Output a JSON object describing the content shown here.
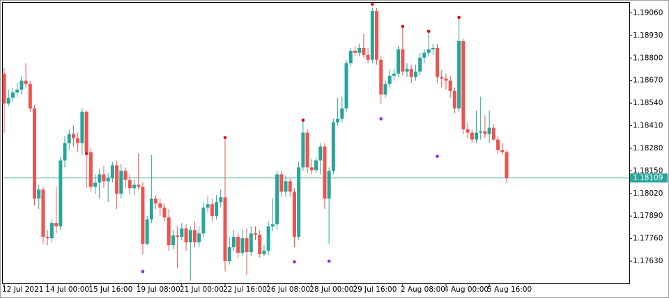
{
  "chart_data": {
    "type": "candlestick",
    "up_color": "#26a69a",
    "down_color": "#ef5350",
    "marker_high_color": "#dd1111",
    "marker_low_color": "#8a2be2",
    "price_line_color": "#26a69a",
    "grid": false,
    "ylim": [
      1.17502,
      1.19118
    ],
    "yticks": [
      {
        "value": 1.1906,
        "label": "1.19060"
      },
      {
        "value": 1.1893,
        "label": "1.18930"
      },
      {
        "value": 1.188,
        "label": "1.18800"
      },
      {
        "value": 1.1867,
        "label": "1.18670"
      },
      {
        "value": 1.1854,
        "label": "1.18540"
      },
      {
        "value": 1.1841,
        "label": "1.18410"
      },
      {
        "value": 1.1828,
        "label": "1.18280"
      },
      {
        "value": 1.1815,
        "label": "1.18150"
      },
      {
        "value": 1.1802,
        "label": "1.18020"
      },
      {
        "value": 1.1789,
        "label": "1.17890"
      },
      {
        "value": 1.1776,
        "label": "1.17760"
      },
      {
        "value": 1.1763,
        "label": "1.17630"
      }
    ],
    "last_price": 1.18109,
    "categories": [
      "12 Jul 2021",
      null,
      null,
      null,
      null,
      null,
      null,
      null,
      null,
      null,
      "14 Jul 00:00",
      null,
      null,
      null,
      null,
      null,
      null,
      null,
      null,
      null,
      "15 Jul 16:00",
      null,
      null,
      null,
      null,
      null,
      null,
      null,
      null,
      null,
      null,
      "19 Jul 08:00",
      null,
      null,
      null,
      null,
      null,
      null,
      null,
      null,
      null,
      "21 Jul 00:00",
      null,
      null,
      null,
      null,
      null,
      null,
      null,
      null,
      null,
      "22 Jul 16:00",
      null,
      null,
      null,
      null,
      null,
      null,
      null,
      null,
      null,
      "26 Jul 08:00",
      null,
      null,
      null,
      null,
      null,
      null,
      null,
      null,
      null,
      "28 Jul 00:00",
      null,
      null,
      null,
      null,
      null,
      null,
      null,
      null,
      null,
      "29 Jul 16:00",
      null,
      null,
      null,
      null,
      null,
      null,
      null,
      null,
      null,
      null,
      "2 Aug 08:00",
      null,
      null,
      null,
      null,
      null,
      null,
      null,
      null,
      null,
      "4 Aug 00:00",
      null,
      null,
      null,
      null,
      null,
      null,
      null,
      null,
      null,
      "5 Aug 16:00",
      null,
      null,
      null,
      null
    ],
    "open": [
      1.1871,
      1.18538,
      1.1857,
      1.18602,
      1.18618,
      1.1867,
      1.1865,
      1.1851,
      1.1799,
      1.18042,
      1.1777,
      1.17762,
      1.1785,
      1.1783,
      1.1821,
      1.1831,
      1.18362,
      1.18338,
      1.1831,
      1.1849,
      1.18258,
      1.18058,
      1.18082,
      1.1813,
      1.1809,
      1.1811,
      1.18182,
      1.18018,
      1.1815,
      1.18098,
      1.1805,
      1.1807,
      1.18058,
      1.1773,
      1.1787,
      1.1799,
      1.17962,
      1.17938,
      1.17882,
      1.17722,
      1.17778,
      1.1777,
      1.17818,
      1.17738,
      1.1781,
      1.17738,
      1.1779,
      1.17938,
      1.17958,
      1.1789,
      1.1797,
      1.17998,
      1.1763,
      1.1771,
      1.1777,
      1.17678,
      1.17762,
      1.17682,
      1.1779,
      1.17782,
      1.1767,
      1.1769,
      1.1783,
      1.17842,
      1.1813,
      1.1803,
      1.1809,
      1.1803,
      1.1777,
      1.1817,
      1.1837,
      1.1817,
      1.18154,
      1.1821,
      1.1829,
      1.1799,
      1.1815,
      1.1843,
      1.1845,
      1.1851,
      1.1877,
      1.18842,
      1.1883,
      1.18858,
      1.18818,
      1.1879,
      1.1907,
      1.1879,
      1.1859,
      1.1865,
      1.18698,
      1.1871,
      1.1885,
      1.18722,
      1.18738,
      1.1869,
      1.18722,
      1.18802,
      1.1883,
      1.1885,
      1.18858,
      1.1869,
      1.18682,
      1.1867,
      1.1861,
      1.1851,
      1.18898,
      1.1839,
      1.1837,
      1.1833,
      1.1837,
      1.18378,
      1.18362,
      1.18398,
      1.1833,
      1.1827,
      1.18258
    ],
    "high": [
      1.18742,
      1.18618,
      1.1863,
      1.18658,
      1.18698,
      1.1877,
      1.1867,
      1.1853,
      1.1807,
      1.18058,
      1.1781,
      1.1787,
      1.18058,
      1.1823,
      1.1835,
      1.1839,
      1.1841,
      1.1837,
      1.1851,
      1.18498,
      1.18282,
      1.1813,
      1.18162,
      1.18178,
      1.18138,
      1.18202,
      1.1821,
      1.1819,
      1.1817,
      1.1813,
      1.18098,
      1.1825,
      1.18082,
      1.1789,
      1.18242,
      1.1801,
      1.1799,
      1.17962,
      1.1793,
      1.1781,
      1.1783,
      1.1785,
      1.17842,
      1.1783,
      1.17858,
      1.1783,
      1.1797,
      1.18002,
      1.1799,
      1.1801,
      1.18042,
      1.18342,
      1.1777,
      1.1781,
      1.1779,
      1.1781,
      1.17818,
      1.1783,
      1.1783,
      1.1781,
      1.17722,
      1.17858,
      1.1799,
      1.1815,
      1.1815,
      1.18122,
      1.1811,
      1.1805,
      1.18202,
      1.18442,
      1.1839,
      1.18218,
      1.1823,
      1.1831,
      1.1831,
      1.1817,
      1.1845,
      1.1857,
      1.18578,
      1.1879,
      1.18858,
      1.1887,
      1.18882,
      1.18938,
      1.18858,
      1.1909,
      1.1909,
      1.1881,
      1.1867,
      1.1873,
      1.18738,
      1.1887,
      1.18986,
      1.1877,
      1.18762,
      1.18762,
      1.1883,
      1.1885,
      1.18954,
      1.18882,
      1.18882,
      1.1873,
      1.1871,
      1.18698,
      1.1863,
      1.19034,
      1.1891,
      1.1843,
      1.1839,
      1.18498,
      1.18578,
      1.1847,
      1.18498,
      1.18418,
      1.1835,
      1.1831,
      1.1827
    ],
    "low": [
      1.1837,
      1.18522,
      1.1855,
      1.18578,
      1.1859,
      1.1863,
      1.1849,
      1.1795,
      1.1793,
      1.1773,
      1.17722,
      1.17738,
      1.1779,
      1.1781,
      1.1817,
      1.1827,
      1.1829,
      1.18258,
      1.18242,
      1.1805,
      1.1803,
      1.18018,
      1.1799,
      1.1805,
      1.1797,
      1.18082,
      1.1793,
      1.1799,
      1.1805,
      1.18018,
      1.1801,
      1.18042,
      1.1767,
      1.17722,
      1.1785,
      1.1793,
      1.1789,
      1.17858,
      1.1769,
      1.17698,
      1.1759,
      1.1775,
      1.1769,
      1.17518,
      1.1771,
      1.1771,
      1.1777,
      1.1791,
      1.17858,
      1.1787,
      1.17938,
      1.1757,
      1.1761,
      1.1769,
      1.1765,
      1.17658,
      1.1755,
      1.17658,
      1.1775,
      1.1765,
      1.17658,
      1.17666,
      1.17802,
      1.1781,
      1.18002,
      1.18002,
      1.18002,
      1.1771,
      1.1775,
      1.1815,
      1.18138,
      1.1813,
      1.18138,
      1.1813,
      1.1793,
      1.1773,
      1.1813,
      1.1841,
      1.1843,
      1.1849,
      1.1875,
      1.1881,
      1.1881,
      1.18802,
      1.1877,
      1.1877,
      1.18762,
      1.18538,
      1.1857,
      1.1863,
      1.1867,
      1.1869,
      1.18698,
      1.1869,
      1.18658,
      1.1867,
      1.18698,
      1.1877,
      1.1881,
      1.18818,
      1.18658,
      1.1863,
      1.18618,
      1.1857,
      1.18482,
      1.1849,
      1.18362,
      1.18338,
      1.1831,
      1.1831,
      1.1833,
      1.18338,
      1.1831,
      1.18322,
      1.1825,
      1.18242,
      1.18082
    ],
    "close": [
      1.18538,
      1.1857,
      1.18602,
      1.18618,
      1.1867,
      1.1865,
      1.1851,
      1.1799,
      1.18042,
      1.1777,
      1.17762,
      1.1785,
      1.1783,
      1.1821,
      1.1831,
      1.18362,
      1.18338,
      1.1831,
      1.1849,
      1.18258,
      1.18058,
      1.18082,
      1.1813,
      1.1809,
      1.1811,
      1.18182,
      1.18018,
      1.1815,
      1.18098,
      1.1805,
      1.1807,
      1.18058,
      1.1773,
      1.1787,
      1.1799,
      1.17962,
      1.17938,
      1.17882,
      1.17722,
      1.17778,
      1.1777,
      1.17818,
      1.17738,
      1.1781,
      1.17738,
      1.1779,
      1.17938,
      1.17958,
      1.1789,
      1.1797,
      1.17998,
      1.1763,
      1.1771,
      1.1777,
      1.17678,
      1.17762,
      1.17682,
      1.1779,
      1.17782,
      1.1767,
      1.1769,
      1.1783,
      1.17842,
      1.1813,
      1.1803,
      1.1809,
      1.1803,
      1.1777,
      1.1817,
      1.1837,
      1.1817,
      1.18154,
      1.1821,
      1.1829,
      1.1799,
      1.1815,
      1.1843,
      1.1845,
      1.1851,
      1.1877,
      1.18842,
      1.1883,
      1.18858,
      1.18818,
      1.1879,
      1.1907,
      1.1879,
      1.1859,
      1.1865,
      1.18698,
      1.1871,
      1.1885,
      1.18722,
      1.18738,
      1.1869,
      1.18722,
      1.18802,
      1.1883,
      1.1885,
      1.18858,
      1.1869,
      1.18682,
      1.1867,
      1.1861,
      1.1851,
      1.18898,
      1.1839,
      1.1837,
      1.1833,
      1.1837,
      1.18378,
      1.18362,
      1.18398,
      1.1833,
      1.1827,
      1.18258,
      1.18109
    ],
    "markers_high": [
      null,
      null,
      null,
      null,
      null,
      null,
      null,
      null,
      null,
      null,
      null,
      null,
      null,
      null,
      null,
      null,
      null,
      null,
      null,
      1.1825,
      null,
      null,
      null,
      null,
      null,
      null,
      null,
      null,
      null,
      null,
      null,
      null,
      null,
      null,
      null,
      null,
      null,
      null,
      null,
      null,
      null,
      null,
      null,
      null,
      null,
      null,
      null,
      null,
      null,
      null,
      null,
      1.18342,
      null,
      null,
      null,
      null,
      null,
      null,
      null,
      null,
      null,
      null,
      null,
      null,
      null,
      null,
      null,
      null,
      null,
      1.18442,
      null,
      null,
      null,
      null,
      null,
      null,
      null,
      null,
      null,
      null,
      null,
      null,
      null,
      null,
      null,
      1.1911,
      null,
      null,
      null,
      null,
      null,
      null,
      1.18982,
      null,
      null,
      null,
      null,
      null,
      1.18954,
      null,
      null,
      null,
      null,
      null,
      null,
      1.19034,
      null,
      null,
      null,
      null,
      null,
      null,
      null,
      null,
      null,
      null,
      null
    ],
    "markers_low": [
      null,
      null,
      null,
      null,
      null,
      null,
      null,
      null,
      null,
      null,
      null,
      null,
      null,
      null,
      null,
      null,
      null,
      null,
      null,
      null,
      null,
      null,
      null,
      null,
      null,
      null,
      null,
      null,
      null,
      null,
      null,
      null,
      1.1757,
      null,
      null,
      null,
      null,
      null,
      null,
      null,
      null,
      null,
      null,
      null,
      null,
      null,
      null,
      null,
      null,
      null,
      null,
      null,
      null,
      null,
      null,
      null,
      null,
      null,
      null,
      null,
      null,
      null,
      null,
      null,
      null,
      null,
      null,
      1.17626,
      null,
      null,
      null,
      null,
      null,
      null,
      null,
      1.1763,
      null,
      null,
      null,
      null,
      null,
      null,
      null,
      null,
      null,
      null,
      null,
      1.1845,
      null,
      null,
      null,
      null,
      null,
      null,
      null,
      null,
      null,
      null,
      null,
      null,
      1.18234,
      null,
      null,
      null,
      null,
      null,
      null,
      null,
      null,
      null,
      null,
      null,
      null,
      null,
      null,
      null,
      null
    ]
  }
}
